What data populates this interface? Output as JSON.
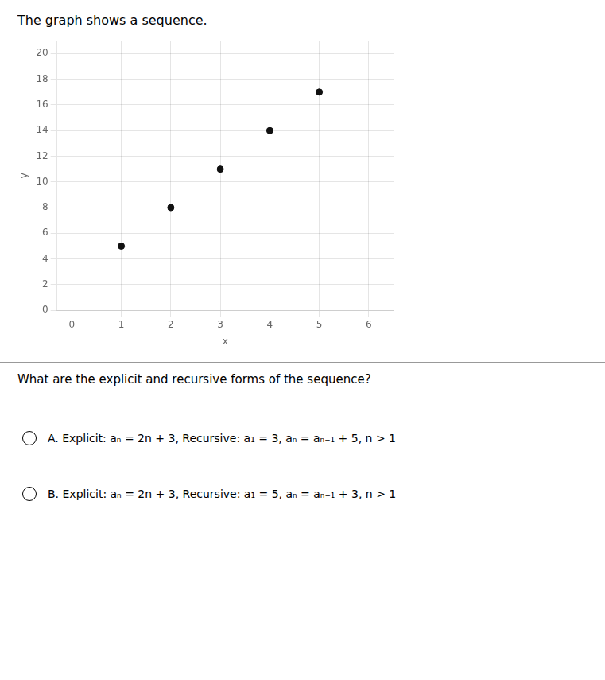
{
  "chart_data": {
    "type": "scatter",
    "title": "The graph shows a sequence.",
    "x": [
      1,
      2,
      3,
      4,
      5
    ],
    "values": [
      5,
      8,
      11,
      14,
      17
    ],
    "color": "#111111",
    "xlabel": "x",
    "ylabel": "y",
    "xlim": [
      -0.3,
      6.5
    ],
    "ylim": [
      0,
      21
    ],
    "xticks": [
      0,
      1,
      2,
      3,
      4,
      5,
      6
    ],
    "yticks": [
      0,
      2,
      4,
      6,
      8,
      10,
      12,
      14,
      16,
      18,
      20
    ],
    "grid": true,
    "annotations": [
      "What are the explicit and recursive forms of the sequence?",
      "A. Explicit: aₙ = 2n + 3, Recursive: a₁ = 3, aₙ = aₙ₋₁ + 5, n > 1",
      "B. Explicit: aₙ = 2n + 3, Recursive: a₁ = 5, aₙ = aₙ₋₁ + 3, n > 1"
    ]
  }
}
